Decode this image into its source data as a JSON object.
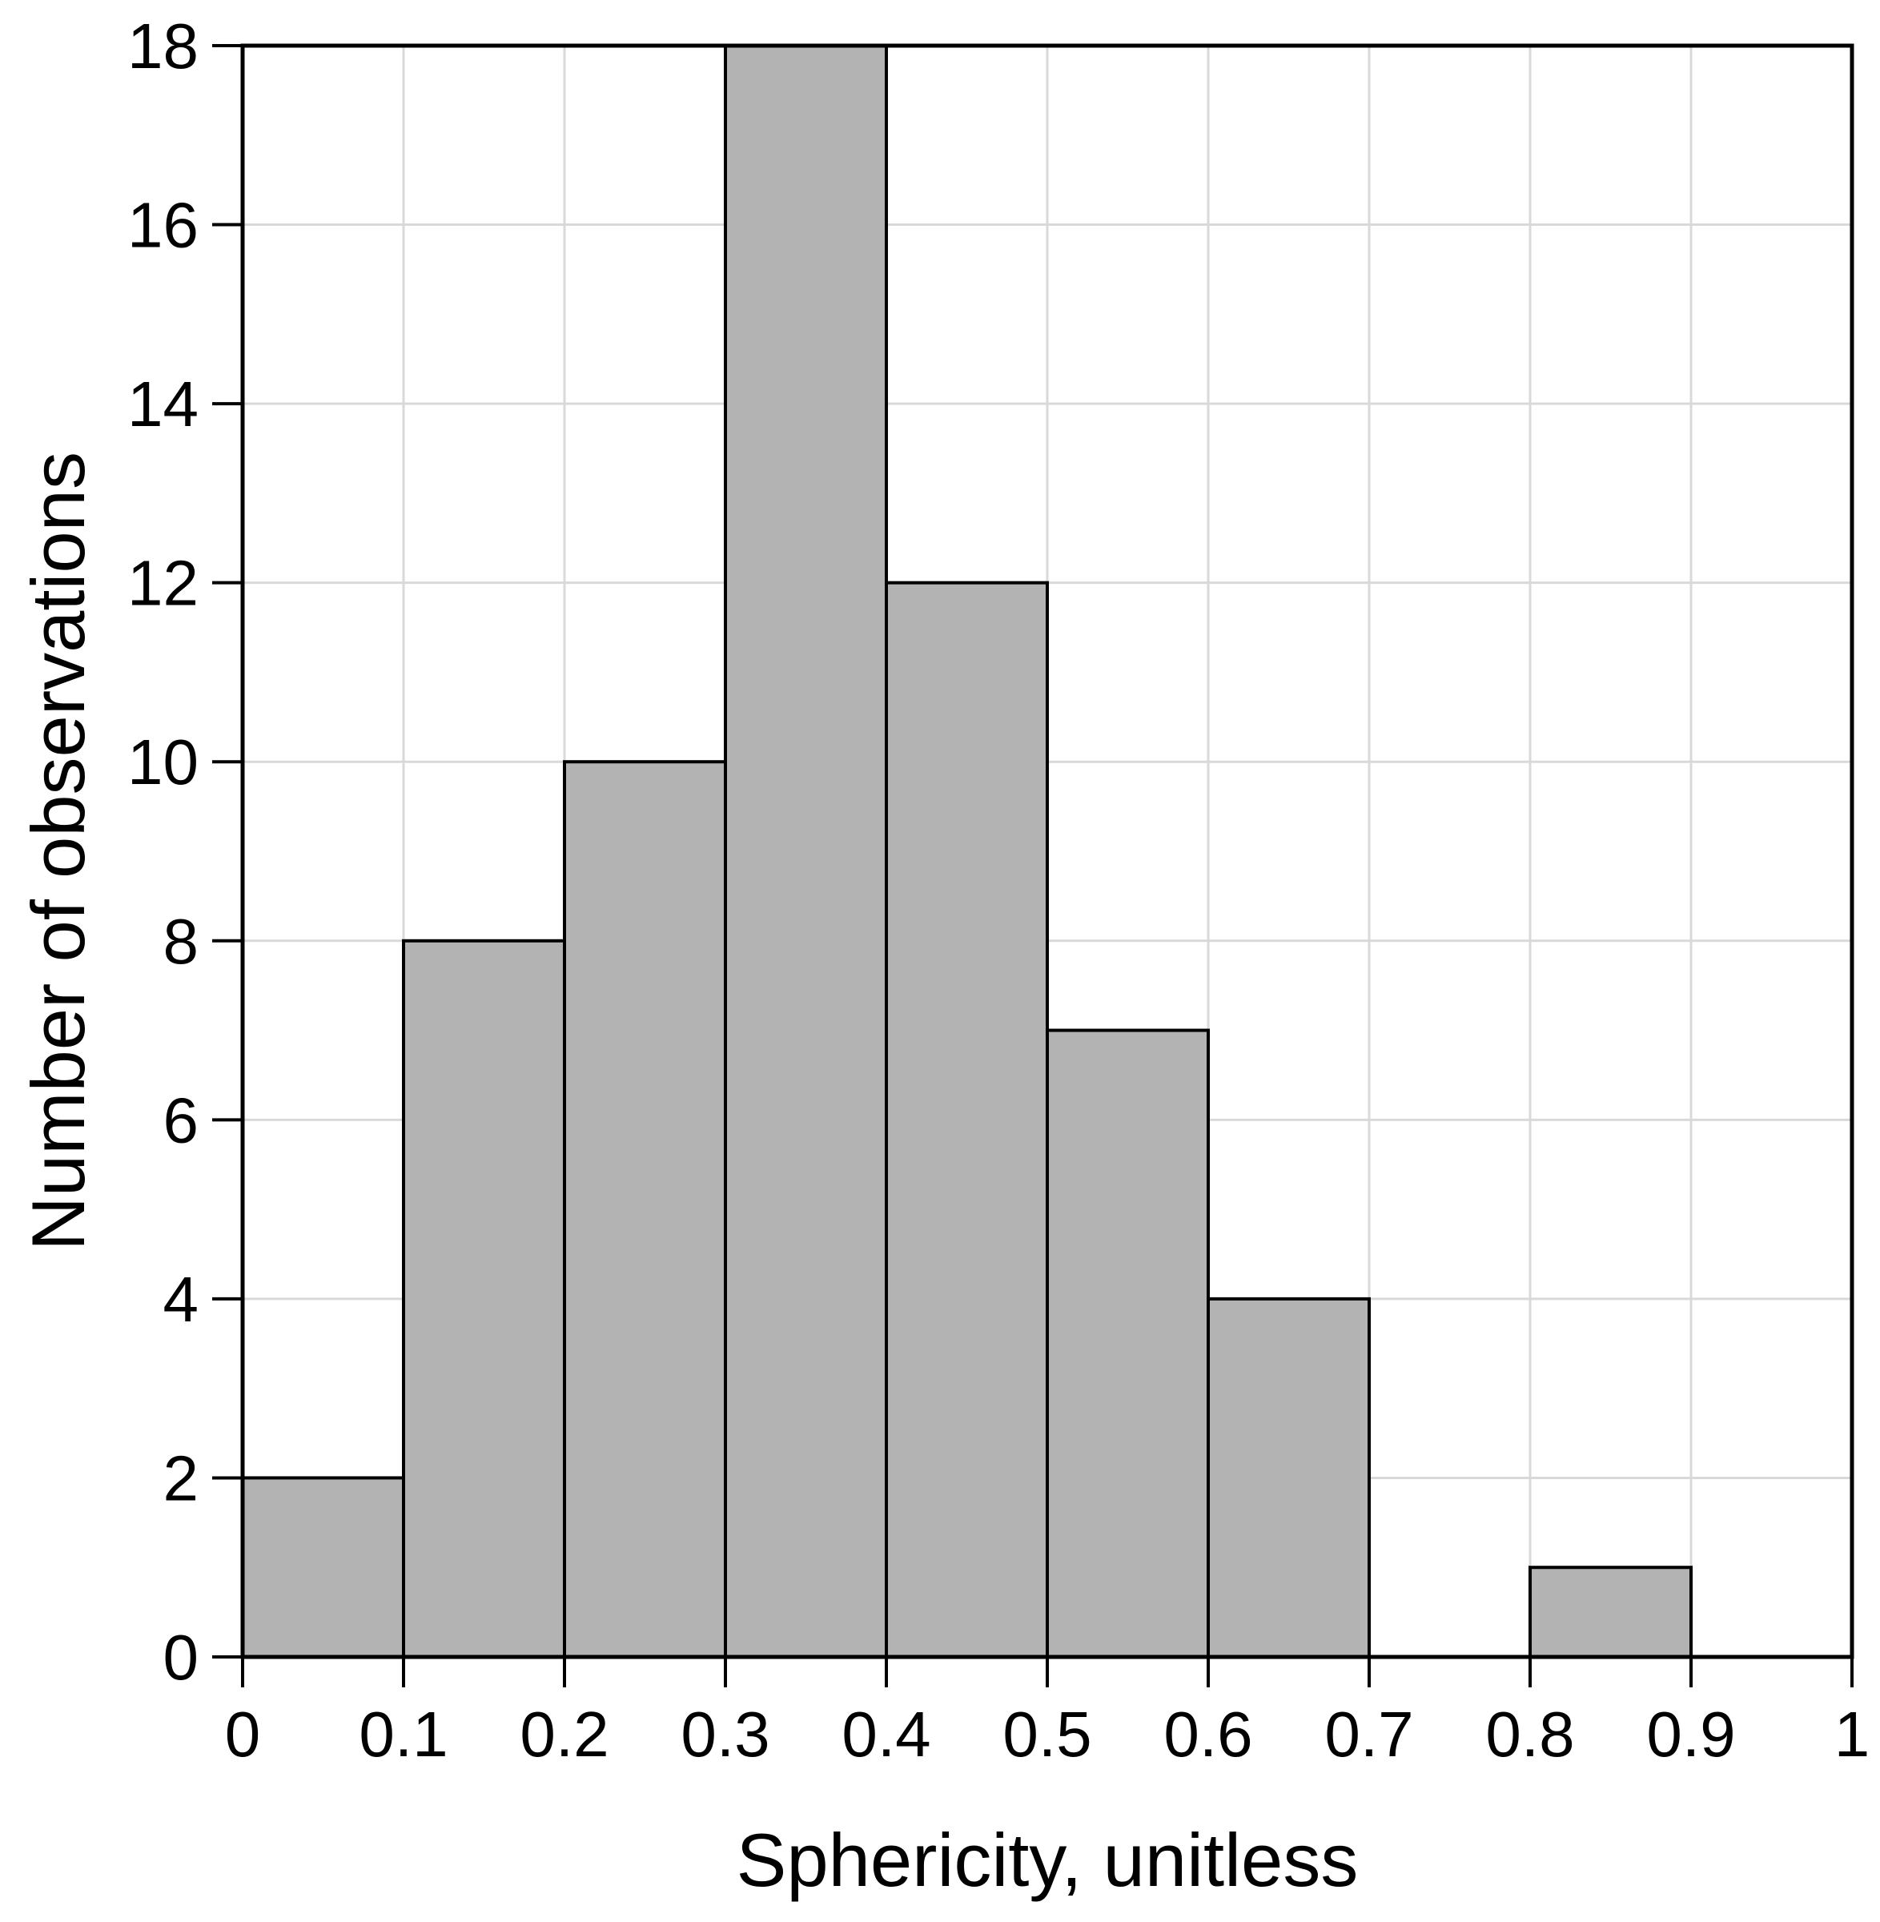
{
  "chart_data": {
    "type": "bar",
    "subtype": "histogram",
    "title": "",
    "xlabel": "Sphericity, unitless",
    "ylabel": "Number of observations",
    "bin_edges": [
      0,
      0.1,
      0.2,
      0.3,
      0.4,
      0.5,
      0.6,
      0.7,
      0.8,
      0.9,
      1.0
    ],
    "x_tick_labels": [
      "0",
      "0.1",
      "0.2",
      "0.3",
      "0.4",
      "0.5",
      "0.6",
      "0.7",
      "0.8",
      "0.9",
      "1"
    ],
    "values": [
      2,
      8,
      10,
      18,
      12,
      7,
      4,
      0,
      1,
      0
    ],
    "xlim": [
      0,
      1
    ],
    "ylim": [
      0,
      18
    ],
    "y_tick_step": 2,
    "y_tick_labels": [
      "0",
      "2",
      "4",
      "6",
      "8",
      "10",
      "12",
      "14",
      "16",
      "18"
    ],
    "grid": true,
    "legend": "none",
    "colors": {
      "bar_fill": "#b3b3b3",
      "bar_stroke": "#000000",
      "grid_color": "#d9d9d9",
      "axis_color": "#000000",
      "text_color": "#000000",
      "background": "#ffffff"
    }
  }
}
